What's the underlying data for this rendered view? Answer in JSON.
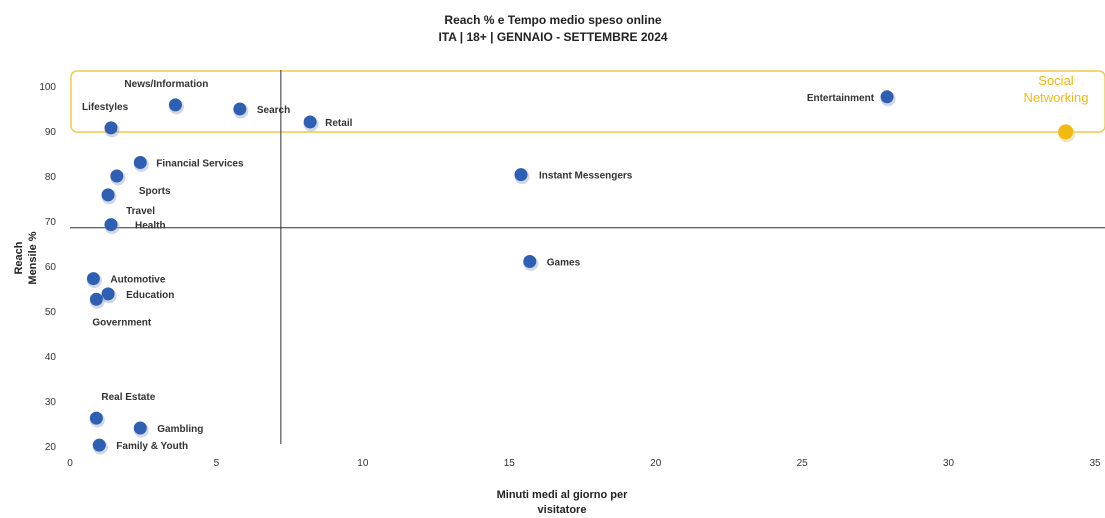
{
  "chart_data": {
    "type": "scatter",
    "title": [
      "Reach % e Tempo medio speso online",
      "ITA | 18+ | GENNAIO - SETTEMBRE 2024"
    ],
    "xlabel": [
      "Minuti medi al giorno per",
      "visitatore"
    ],
    "ylabel": [
      "Reach",
      "Mensile %"
    ],
    "xlim": [
      0,
      35
    ],
    "ylim": [
      20,
      100
    ],
    "x_ticks": [
      "0",
      "5",
      "10",
      "15",
      "20",
      "25",
      "30",
      "35"
    ],
    "y_ticks": [
      "20",
      "30",
      "40",
      "50",
      "60",
      "70",
      "80",
      "90",
      "100"
    ],
    "x_ref_line": 7.2,
    "y_ref_line": 68.5,
    "grid": false,
    "colors": {
      "point": "#2f5fb3",
      "highlight": "#f2b90f",
      "box": "#f2c94c",
      "ref_line": "#333333"
    },
    "points": [
      {
        "label": "News/Information",
        "x": 3.6,
        "y": 95.8
      },
      {
        "label": "Lifestyles",
        "x": 1.4,
        "y": 90.7
      },
      {
        "label": "Search",
        "x": 5.8,
        "y": 94.9
      },
      {
        "label": "Retail",
        "x": 8.2,
        "y": 92.0
      },
      {
        "label": "Entertainment",
        "x": 27.9,
        "y": 97.6
      },
      {
        "label": "Financial Services",
        "x": 2.4,
        "y": 83.0
      },
      {
        "label": "Sports",
        "x": 1.6,
        "y": 80.0
      },
      {
        "label": "Travel",
        "x": 1.3,
        "y": 75.8
      },
      {
        "label": "Health",
        "x": 1.4,
        "y": 69.2
      },
      {
        "label": "Instant Messengers",
        "x": 15.4,
        "y": 80.3
      },
      {
        "label": "Games",
        "x": 15.7,
        "y": 61.0
      },
      {
        "label": "Automotive",
        "x": 0.8,
        "y": 57.2
      },
      {
        "label": "Education",
        "x": 1.3,
        "y": 53.8
      },
      {
        "label": "Government",
        "x": 0.9,
        "y": 52.6
      },
      {
        "label": "Real Estate",
        "x": 0.9,
        "y": 26.2
      },
      {
        "label": "Gambling",
        "x": 2.4,
        "y": 24.0
      },
      {
        "label": "Family & Youth",
        "x": 1.0,
        "y": 20.2
      }
    ],
    "highlight": {
      "label": [
        "Social",
        "Networking"
      ],
      "x": 34.0,
      "y": 89.8
    }
  }
}
